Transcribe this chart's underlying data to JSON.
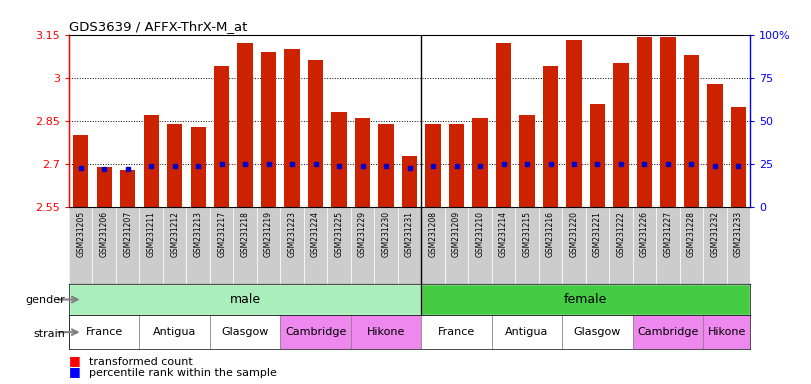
{
  "title": "GDS3639 / AFFX-ThrX-M_at",
  "samples": [
    "GSM231205",
    "GSM231206",
    "GSM231207",
    "GSM231211",
    "GSM231212",
    "GSM231213",
    "GSM231217",
    "GSM231218",
    "GSM231219",
    "GSM231223",
    "GSM231224",
    "GSM231225",
    "GSM231229",
    "GSM231230",
    "GSM231231",
    "GSM231208",
    "GSM231209",
    "GSM231210",
    "GSM231214",
    "GSM231215",
    "GSM231216",
    "GSM231220",
    "GSM231221",
    "GSM231222",
    "GSM231226",
    "GSM231227",
    "GSM231228",
    "GSM231232",
    "GSM231233"
  ],
  "transformed_count": [
    2.8,
    2.69,
    2.68,
    2.87,
    2.84,
    2.83,
    3.04,
    3.12,
    3.09,
    3.1,
    3.06,
    2.88,
    2.86,
    2.84,
    2.73,
    2.84,
    2.84,
    2.86,
    3.12,
    2.87,
    3.04,
    3.13,
    2.91,
    3.05,
    3.14,
    3.14,
    3.08,
    2.98,
    2.9
  ],
  "percentile_rank": [
    23,
    22,
    22,
    24,
    24,
    24,
    25,
    25,
    25,
    25,
    25,
    24,
    24,
    24,
    23,
    24,
    24,
    24,
    25,
    25,
    25,
    25,
    25,
    25,
    25,
    25,
    25,
    24,
    24
  ],
  "ymin": 2.55,
  "ymax": 3.15,
  "yticks": [
    2.55,
    2.7,
    2.85,
    3.0,
    3.15
  ],
  "ytick_labels": [
    "2.55",
    "2.7",
    "2.85",
    "3",
    "3.15"
  ],
  "y2min": 0,
  "y2max": 100,
  "y2ticks": [
    0,
    25,
    50,
    75,
    100
  ],
  "y2tick_labels": [
    "0",
    "25",
    "50",
    "75",
    "100%"
  ],
  "bar_color": "#cc2200",
  "blue_color": "#0000cc",
  "male_count": 15,
  "female_count": 14,
  "gender_color_male": "#aaeebb",
  "gender_color_female": "#44cc44",
  "strain_labels_male": [
    "France",
    "Antigua",
    "Glasgow",
    "Cambridge",
    "Hikone"
  ],
  "strain_labels_female": [
    "France",
    "Antigua",
    "Glasgow",
    "Cambridge",
    "Hikone"
  ],
  "strain_boundaries_male": [
    0,
    3,
    6,
    9,
    12,
    15
  ],
  "strain_boundaries_female": [
    0,
    3,
    6,
    9,
    12,
    14
  ],
  "strain_color_white": "#ffffff",
  "strain_color_pink": "#ee88ee",
  "strain_colors": [
    "#ffffff",
    "#ffffff",
    "#ffffff",
    "#ee88ee",
    "#ee88ee"
  ],
  "legend_red": "transformed count",
  "legend_blue": "percentile rank within the sample",
  "bar_width": 0.65,
  "tick_bg_color": "#cccccc"
}
